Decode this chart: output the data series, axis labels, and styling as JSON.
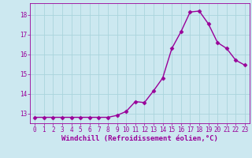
{
  "x": [
    0,
    1,
    2,
    3,
    4,
    5,
    6,
    7,
    8,
    9,
    10,
    11,
    12,
    13,
    14,
    15,
    16,
    17,
    18,
    19,
    20,
    21,
    22,
    23
  ],
  "y": [
    12.8,
    12.8,
    12.8,
    12.8,
    12.8,
    12.8,
    12.8,
    12.8,
    12.8,
    12.9,
    13.1,
    13.6,
    13.55,
    14.15,
    14.8,
    16.3,
    17.15,
    18.15,
    18.2,
    17.55,
    16.6,
    16.3,
    15.7,
    15.45
  ],
  "line_color": "#990099",
  "marker": "D",
  "markersize": 2.5,
  "linewidth": 1.0,
  "xlabel": "Windchill (Refroidissement éolien,°C)",
  "xlim_min": -0.5,
  "xlim_max": 23.5,
  "ylim_min": 12.5,
  "ylim_max": 18.6,
  "yticks": [
    13,
    14,
    15,
    16,
    17,
    18
  ],
  "xtick_labels": [
    "0",
    "1",
    "2",
    "3",
    "4",
    "5",
    "6",
    "7",
    "8",
    "9",
    "10",
    "11",
    "12",
    "13",
    "14",
    "15",
    "16",
    "17",
    "18",
    "19",
    "20",
    "21",
    "22",
    "23"
  ],
  "bg_color": "#cce8f0",
  "grid_color": "#aad4dc",
  "text_color": "#990099",
  "label_fontsize": 6.5,
  "tick_fontsize": 5.5
}
